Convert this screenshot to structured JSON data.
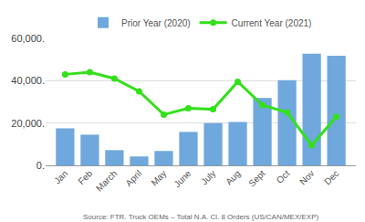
{
  "chart_data": {
    "type": "bar",
    "categories": [
      "Jan",
      "Feb",
      "March",
      "April",
      "May",
      "June",
      "July",
      "Aug",
      "Sept",
      "Oct",
      "Nov",
      "Dec"
    ],
    "series": [
      {
        "name": "Prior Year (2020)",
        "type": "bar",
        "color": "#6fa8dc",
        "values": [
          17500,
          14500,
          7200,
          4200,
          6800,
          15800,
          20000,
          20500,
          31800,
          40300,
          52800,
          51800
        ]
      },
      {
        "name": "Current Year (2021)",
        "type": "line",
        "color": "#33e01a",
        "marker": "circle",
        "line_style": "solid",
        "values": [
          43000,
          44000,
          41000,
          35000,
          24000,
          27000,
          26500,
          39500,
          28500,
          25000,
          9500,
          23000
        ]
      }
    ],
    "ylim": [
      0,
      60000
    ],
    "yticks": [
      {
        "value": 0,
        "label": "0."
      },
      {
        "value": 20000,
        "label": "20,000."
      },
      {
        "value": 40000,
        "label": "40,000."
      },
      {
        "value": 60000,
        "label": "60,000."
      }
    ],
    "grid": true,
    "legend": "top",
    "source": "Source: FTR. Truck OEMs – Total N.A. Cl. 8 Orders (US/CAN/MEX/EXP)"
  }
}
